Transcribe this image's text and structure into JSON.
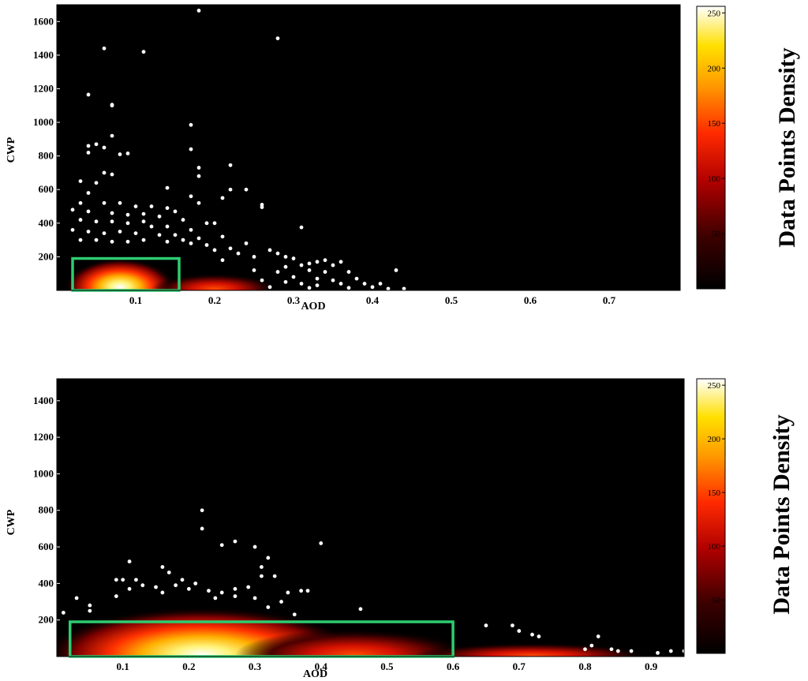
{
  "chart_data": [
    {
      "type": "scatter",
      "xlabel": "AOD",
      "ylabel": "CWP",
      "xlim": [
        0.0,
        0.79
      ],
      "ylim": [
        0,
        1700
      ],
      "xticks": [
        0.1,
        0.2,
        0.3,
        0.4,
        0.5,
        0.6,
        0.7
      ],
      "yticks": [
        200,
        400,
        600,
        800,
        1000,
        1200,
        1400,
        1600
      ],
      "background": "#000000",
      "point_color": "#ffffff",
      "highlight_color": "#2ecc71",
      "highlight_box": {
        "x": [
          0.02,
          0.155
        ],
        "y": [
          0,
          190
        ]
      },
      "density_blobs": [
        {
          "cx": 0.08,
          "cy": 20,
          "rx": 0.07,
          "ry": 170,
          "intensity": 1.0
        },
        {
          "cx": 0.2,
          "cy": 10,
          "rx": 0.08,
          "ry": 90,
          "intensity": 0.45
        }
      ],
      "colorbar": {
        "label": "Data Points Density",
        "ticks": [
          50,
          100,
          150,
          200,
          250
        ],
        "range": [
          0,
          256
        ]
      },
      "points": [
        [
          0.18,
          1665
        ],
        [
          0.06,
          1440
        ],
        [
          0.11,
          1420
        ],
        [
          0.28,
          1500
        ],
        [
          0.04,
          1165
        ],
        [
          0.07,
          1105
        ],
        [
          0.07,
          1100
        ],
        [
          0.07,
          920
        ],
        [
          0.05,
          870
        ],
        [
          0.04,
          860
        ],
        [
          0.06,
          850
        ],
        [
          0.04,
          820
        ],
        [
          0.17,
          985
        ],
        [
          0.08,
          810
        ],
        [
          0.09,
          815
        ],
        [
          0.17,
          840
        ],
        [
          0.18,
          730
        ],
        [
          0.22,
          745
        ],
        [
          0.06,
          700
        ],
        [
          0.03,
          650
        ],
        [
          0.05,
          640
        ],
        [
          0.07,
          690
        ],
        [
          0.18,
          680
        ],
        [
          0.22,
          600
        ],
        [
          0.24,
          600
        ],
        [
          0.04,
          580
        ],
        [
          0.14,
          610
        ],
        [
          0.17,
          560
        ],
        [
          0.18,
          520
        ],
        [
          0.21,
          550
        ],
        [
          0.26,
          510
        ],
        [
          0.26,
          495
        ],
        [
          0.03,
          520
        ],
        [
          0.06,
          520
        ],
        [
          0.08,
          520
        ],
        [
          0.1,
          500
        ],
        [
          0.12,
          500
        ],
        [
          0.14,
          490
        ],
        [
          0.15,
          470
        ],
        [
          0.02,
          480
        ],
        [
          0.04,
          470
        ],
        [
          0.07,
          460
        ],
        [
          0.09,
          450
        ],
        [
          0.11,
          455
        ],
        [
          0.13,
          440
        ],
        [
          0.03,
          420
        ],
        [
          0.05,
          410
        ],
        [
          0.07,
          410
        ],
        [
          0.09,
          400
        ],
        [
          0.11,
          410
        ],
        [
          0.16,
          420
        ],
        [
          0.19,
          400
        ],
        [
          0.2,
          400
        ],
        [
          0.12,
          380
        ],
        [
          0.14,
          380
        ],
        [
          0.17,
          360
        ],
        [
          0.31,
          375
        ],
        [
          0.02,
          360
        ],
        [
          0.04,
          350
        ],
        [
          0.06,
          340
        ],
        [
          0.08,
          350
        ],
        [
          0.1,
          340
        ],
        [
          0.13,
          330
        ],
        [
          0.15,
          330
        ],
        [
          0.16,
          300
        ],
        [
          0.18,
          310
        ],
        [
          0.21,
          320
        ],
        [
          0.03,
          300
        ],
        [
          0.05,
          300
        ],
        [
          0.07,
          290
        ],
        [
          0.09,
          290
        ],
        [
          0.11,
          300
        ],
        [
          0.14,
          290
        ],
        [
          0.17,
          280
        ],
        [
          0.19,
          270
        ],
        [
          0.22,
          250
        ],
        [
          0.24,
          280
        ],
        [
          0.2,
          240
        ],
        [
          0.23,
          220
        ],
        [
          0.25,
          200
        ],
        [
          0.27,
          240
        ],
        [
          0.28,
          220
        ],
        [
          0.29,
          200
        ],
        [
          0.21,
          180
        ],
        [
          0.3,
          190
        ],
        [
          0.32,
          160
        ],
        [
          0.33,
          170
        ],
        [
          0.34,
          180
        ],
        [
          0.29,
          140
        ],
        [
          0.31,
          150
        ],
        [
          0.35,
          150
        ],
        [
          0.36,
          170
        ],
        [
          0.25,
          120
        ],
        [
          0.28,
          110
        ],
        [
          0.32,
          120
        ],
        [
          0.34,
          110
        ],
        [
          0.37,
          110
        ],
        [
          0.3,
          80
        ],
        [
          0.33,
          70
        ],
        [
          0.35,
          60
        ],
        [
          0.38,
          70
        ],
        [
          0.26,
          60
        ],
        [
          0.29,
          50
        ],
        [
          0.31,
          40
        ],
        [
          0.33,
          30
        ],
        [
          0.36,
          40
        ],
        [
          0.39,
          40
        ],
        [
          0.41,
          40
        ],
        [
          0.27,
          20
        ],
        [
          0.32,
          15
        ],
        [
          0.37,
          15
        ],
        [
          0.4,
          20
        ],
        [
          0.42,
          10
        ],
        [
          0.43,
          120
        ],
        [
          0.44,
          10
        ]
      ]
    },
    {
      "type": "scatter",
      "xlabel": "AOD",
      "ylabel": "CWP",
      "xlim": [
        0.0,
        0.95
      ],
      "ylim": [
        0,
        1520
      ],
      "xticks": [
        0.1,
        0.2,
        0.3,
        0.4,
        0.5,
        0.6,
        0.7,
        0.8,
        0.9
      ],
      "yticks": [
        200,
        400,
        600,
        800,
        1000,
        1200,
        1400
      ],
      "background": "#000000",
      "point_color": "#ffffff",
      "highlight_color": "#2ecc71",
      "highlight_box": {
        "x": [
          0.02,
          0.6
        ],
        "y": [
          0,
          190
        ]
      },
      "density_blobs": [
        {
          "cx": 0.22,
          "cy": 10,
          "rx": 0.24,
          "ry": 260,
          "intensity": 1.0
        },
        {
          "cx": 0.45,
          "cy": 10,
          "rx": 0.18,
          "ry": 140,
          "intensity": 0.5
        },
        {
          "cx": 0.72,
          "cy": 5,
          "rx": 0.18,
          "ry": 70,
          "intensity": 0.2
        }
      ],
      "colorbar": {
        "label": "Data Points Density",
        "ticks": [
          50,
          100,
          150,
          200,
          250
        ],
        "range": [
          0,
          256
        ]
      },
      "points": [
        [
          0.22,
          800
        ],
        [
          0.22,
          700
        ],
        [
          0.27,
          630
        ],
        [
          0.25,
          610
        ],
        [
          0.3,
          600
        ],
        [
          0.4,
          620
        ],
        [
          0.32,
          540
        ],
        [
          0.11,
          520
        ],
        [
          0.16,
          490
        ],
        [
          0.17,
          460
        ],
        [
          0.31,
          490
        ],
        [
          0.31,
          440
        ],
        [
          0.33,
          440
        ],
        [
          0.09,
          420
        ],
        [
          0.1,
          420
        ],
        [
          0.12,
          420
        ],
        [
          0.19,
          420
        ],
        [
          0.21,
          400
        ],
        [
          0.13,
          390
        ],
        [
          0.15,
          380
        ],
        [
          0.18,
          390
        ],
        [
          0.2,
          370
        ],
        [
          0.23,
          360
        ],
        [
          0.25,
          350
        ],
        [
          0.27,
          370
        ],
        [
          0.29,
          380
        ],
        [
          0.11,
          370
        ],
        [
          0.09,
          330
        ],
        [
          0.16,
          350
        ],
        [
          0.24,
          320
        ],
        [
          0.27,
          330
        ],
        [
          0.3,
          320
        ],
        [
          0.35,
          350
        ],
        [
          0.37,
          360
        ],
        [
          0.38,
          360
        ],
        [
          0.03,
          320
        ],
        [
          0.05,
          280
        ],
        [
          0.05,
          250
        ],
        [
          0.34,
          300
        ],
        [
          0.32,
          270
        ],
        [
          0.36,
          230
        ],
        [
          0.46,
          260
        ],
        [
          0.65,
          170
        ],
        [
          0.69,
          170
        ],
        [
          0.7,
          140
        ],
        [
          0.72,
          120
        ],
        [
          0.73,
          110
        ],
        [
          0.81,
          60
        ],
        [
          0.82,
          110
        ],
        [
          0.84,
          40
        ],
        [
          0.85,
          30
        ],
        [
          0.87,
          30
        ],
        [
          0.91,
          20
        ],
        [
          0.93,
          30
        ],
        [
          0.95,
          30
        ],
        [
          0.8,
          40
        ],
        [
          0.01,
          240
        ]
      ]
    }
  ]
}
